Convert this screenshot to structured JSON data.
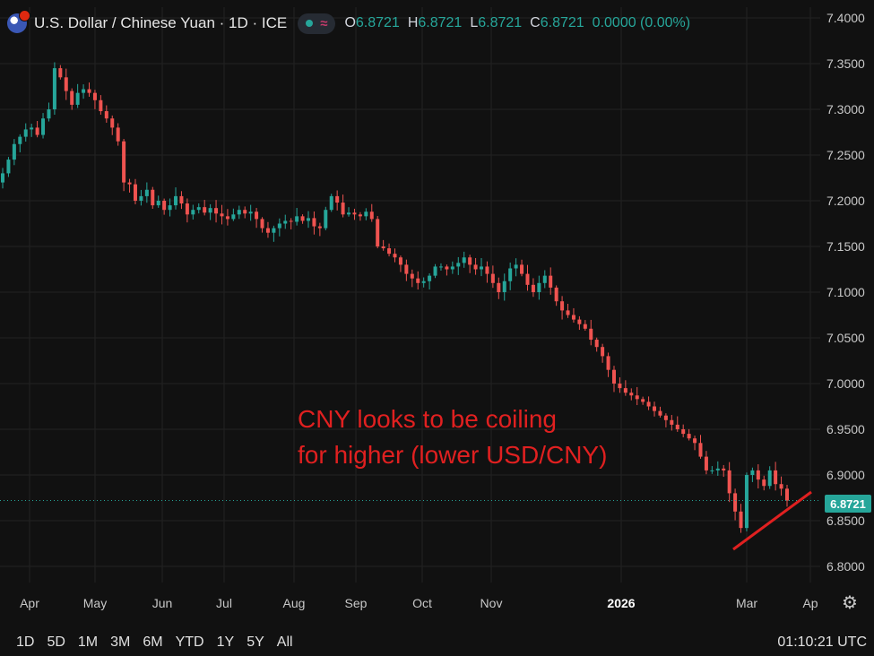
{
  "header": {
    "symbol_title": "U.S. Dollar / Chinese Yuan · 1D · ICE",
    "flag_icon": "usd-cny-flag-icon",
    "ohlc": {
      "o_label": "O",
      "o_value": "6.8721",
      "h_label": "H",
      "h_value": "6.8721",
      "l_label": "L",
      "l_value": "6.8721",
      "c_label": "C",
      "c_value": "6.8721",
      "change": "0.0000 (0.00%)"
    }
  },
  "annotation": {
    "line1": "CNY looks to be coiling",
    "line2": "for higher (lower USD/CNY)",
    "color": "#e02020"
  },
  "price_tag": "6.8721",
  "colors": {
    "up": "#26a69a",
    "down": "#ef5350",
    "background": "#111111",
    "grid": "#232323"
  },
  "timeframes": [
    "1D",
    "5D",
    "1M",
    "3M",
    "6M",
    "YTD",
    "1Y",
    "5Y",
    "All"
  ],
  "clock": "01:10:21 UTC",
  "settings_icon": "gear-icon",
  "chart_data": {
    "type": "candlestick",
    "symbol": "USD/CNY",
    "interval": "1D",
    "ylim": [
      6.78,
      7.41
    ],
    "y_ticks": [
      "7.4000",
      "7.3500",
      "7.3000",
      "7.2500",
      "7.2000",
      "7.1500",
      "7.1000",
      "7.0500",
      "7.0000",
      "6.9500",
      "6.9000",
      "6.8500",
      "6.8000"
    ],
    "x_ticks": [
      "Apr",
      "May",
      "Jun",
      "Jul",
      "Aug",
      "Sep",
      "Oct",
      "Nov",
      "2026",
      "Mar",
      "Ap"
    ],
    "last_price": 6.8721,
    "closes": [
      7.23,
      7.245,
      7.262,
      7.27,
      7.278,
      7.28,
      7.272,
      7.29,
      7.3,
      7.345,
      7.335,
      7.32,
      7.305,
      7.318,
      7.322,
      7.318,
      7.31,
      7.298,
      7.29,
      7.28,
      7.265,
      7.22,
      7.218,
      7.2,
      7.205,
      7.212,
      7.195,
      7.2,
      7.19,
      7.195,
      7.205,
      7.197,
      7.185,
      7.19,
      7.193,
      7.187,
      7.192,
      7.186,
      7.183,
      7.18,
      7.185,
      7.19,
      7.186,
      7.188,
      7.18,
      7.17,
      7.165,
      7.17,
      7.175,
      7.178,
      7.177,
      7.183,
      7.178,
      7.181,
      7.172,
      7.17,
      7.19,
      7.205,
      7.198,
      7.185,
      7.187,
      7.185,
      7.183,
      7.188,
      7.18,
      7.15,
      7.148,
      7.142,
      7.138,
      7.13,
      7.12,
      7.115,
      7.11,
      7.112,
      7.118,
      7.128,
      7.128,
      7.125,
      7.128,
      7.132,
      7.138,
      7.13,
      7.125,
      7.128,
      7.12,
      7.11,
      7.1,
      7.112,
      7.126,
      7.13,
      7.12,
      7.108,
      7.1,
      7.11,
      7.118,
      7.105,
      7.09,
      7.08,
      7.075,
      7.07,
      7.065,
      7.06,
      7.048,
      7.04,
      7.03,
      7.015,
      7.0,
      6.995,
      6.99,
      6.987,
      6.983,
      6.98,
      6.975,
      6.97,
      6.965,
      6.96,
      6.955,
      6.95,
      6.945,
      6.94,
      6.935,
      6.92,
      6.905,
      6.905,
      6.907,
      6.905,
      6.88,
      6.86,
      6.842,
      6.9,
      6.905,
      6.895,
      6.888,
      6.905,
      6.89,
      6.885,
      6.872
    ]
  }
}
